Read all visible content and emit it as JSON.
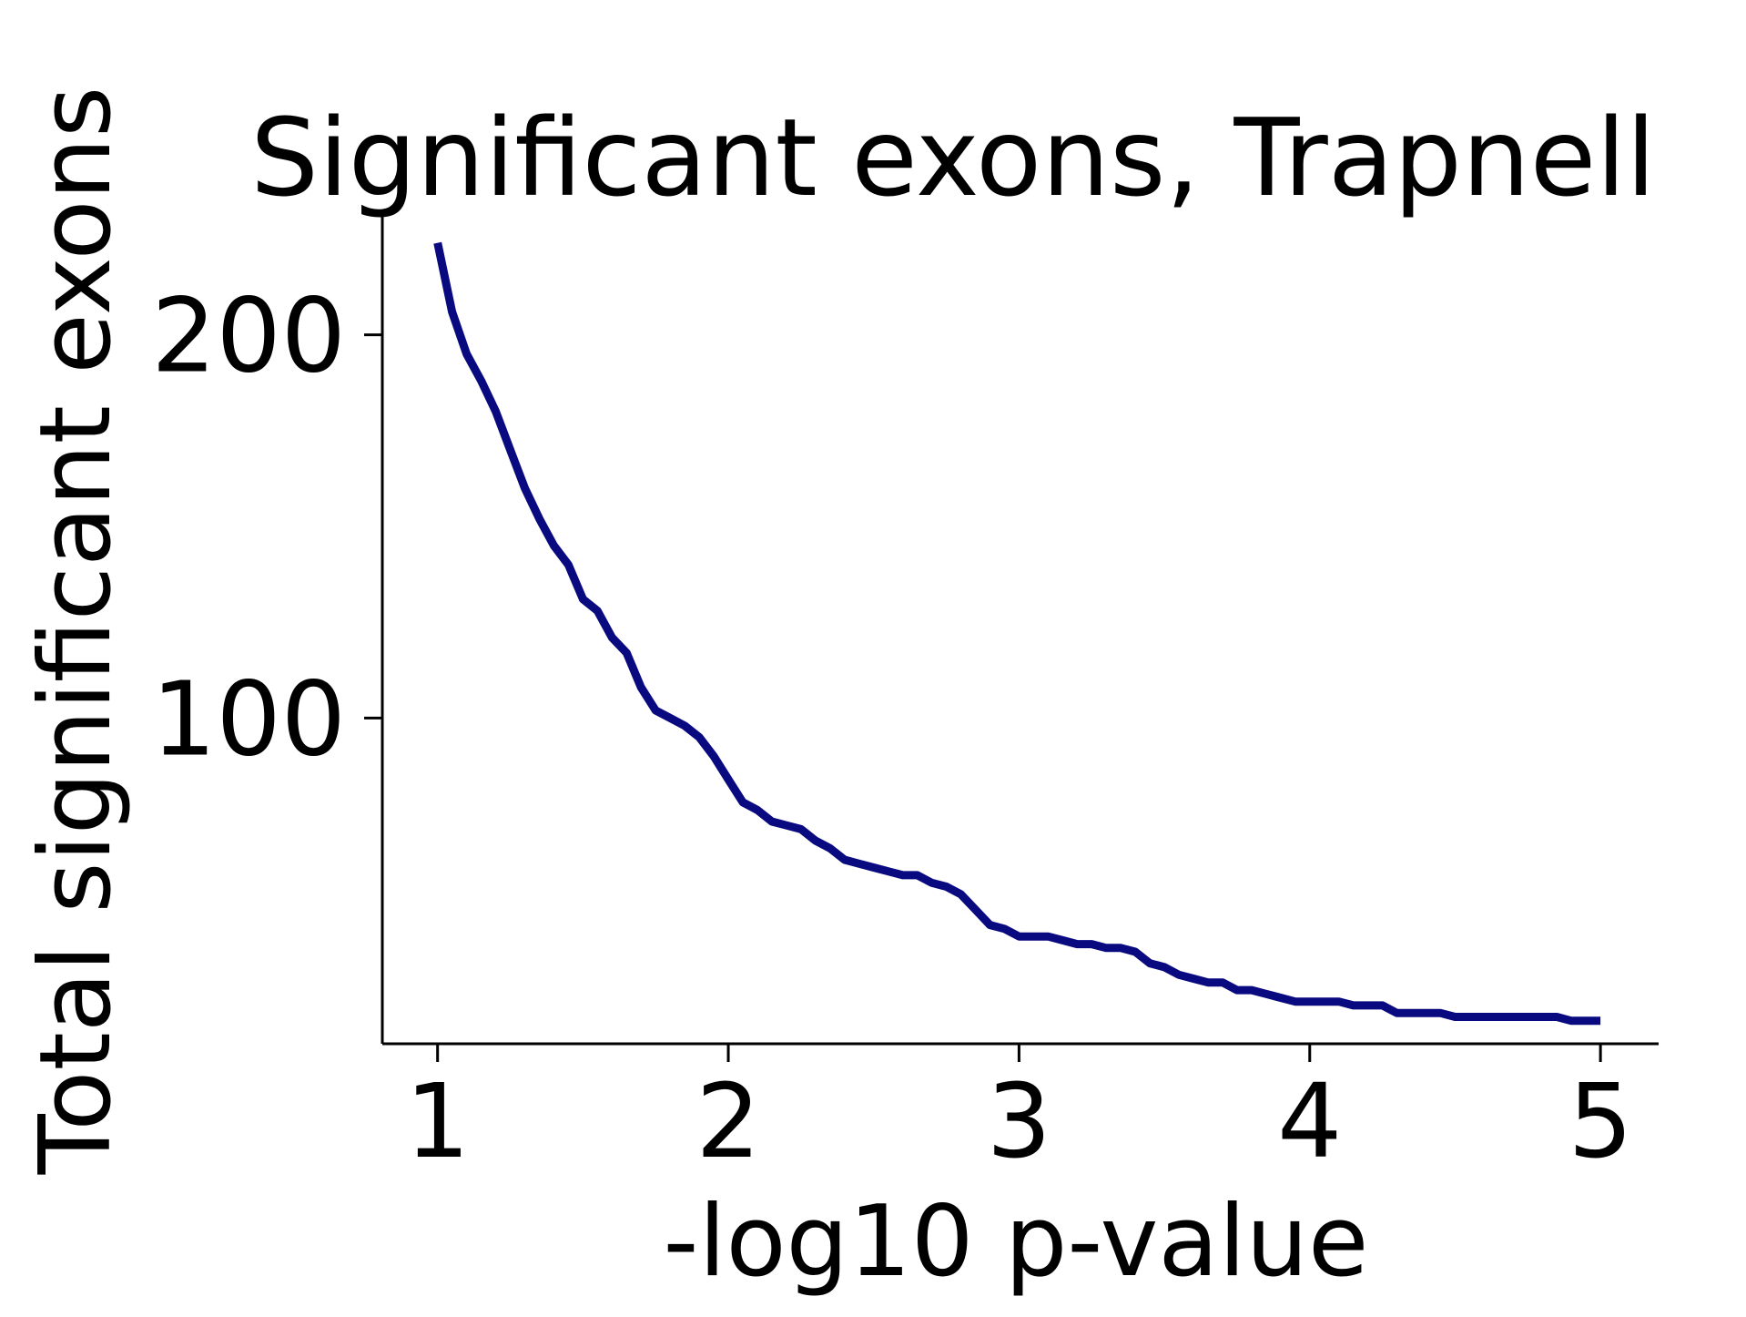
{
  "chart_data": {
    "type": "line",
    "title": "Significant exons, Trapnell",
    "xlabel": "-log10 p-value",
    "ylabel": "Total significant exons",
    "xlim": [
      0.81,
      5.2
    ],
    "ylim": [
      15,
      232
    ],
    "xticks": [
      1,
      2,
      3,
      4,
      5
    ],
    "yticks": [
      100,
      200
    ],
    "grid": false,
    "legend": "none",
    "line_color": "#0a0a80",
    "series": [
      {
        "x": [
          1.0,
          1.05,
          1.1,
          1.15,
          1.2,
          1.25,
          1.3,
          1.35,
          1.4,
          1.45,
          1.5,
          1.55,
          1.6,
          1.65,
          1.7,
          1.75,
          1.8,
          1.85,
          1.9,
          1.95,
          2.0,
          2.05,
          2.1,
          2.15,
          2.2,
          2.25,
          2.3,
          2.35,
          2.4,
          2.45,
          2.5,
          2.55,
          2.6,
          2.65,
          2.7,
          2.75,
          2.8,
          2.85,
          2.9,
          2.95,
          3.0,
          3.05,
          3.1,
          3.15,
          3.2,
          3.25,
          3.3,
          3.35,
          3.4,
          3.45,
          3.5,
          3.55,
          3.6,
          3.65,
          3.7,
          3.75,
          3.8,
          3.85,
          3.9,
          3.95,
          4.0,
          4.05,
          4.1,
          4.15,
          4.2,
          4.25,
          4.3,
          4.35,
          4.4,
          4.45,
          4.5,
          4.55,
          4.6,
          4.65,
          4.7,
          4.75,
          4.8,
          4.85,
          4.9,
          4.95,
          5.0
        ],
        "y": [
          224,
          206,
          195,
          188,
          180,
          170,
          160,
          152,
          145,
          140,
          131,
          128,
          121,
          117,
          108,
          102,
          100,
          98,
          95,
          90,
          84,
          78,
          76,
          73,
          72,
          71,
          68,
          66,
          63,
          62,
          61,
          60,
          59,
          59,
          57,
          56,
          54,
          50,
          46,
          45,
          43,
          43,
          43,
          42,
          41,
          41,
          40,
          40,
          39,
          36,
          35,
          33,
          32,
          31,
          31,
          29,
          29,
          28,
          27,
          26,
          26,
          26,
          26,
          25,
          25,
          25,
          23,
          23,
          23,
          23,
          22,
          22,
          22,
          22,
          22,
          22,
          22,
          22,
          21,
          21,
          21
        ]
      }
    ]
  }
}
